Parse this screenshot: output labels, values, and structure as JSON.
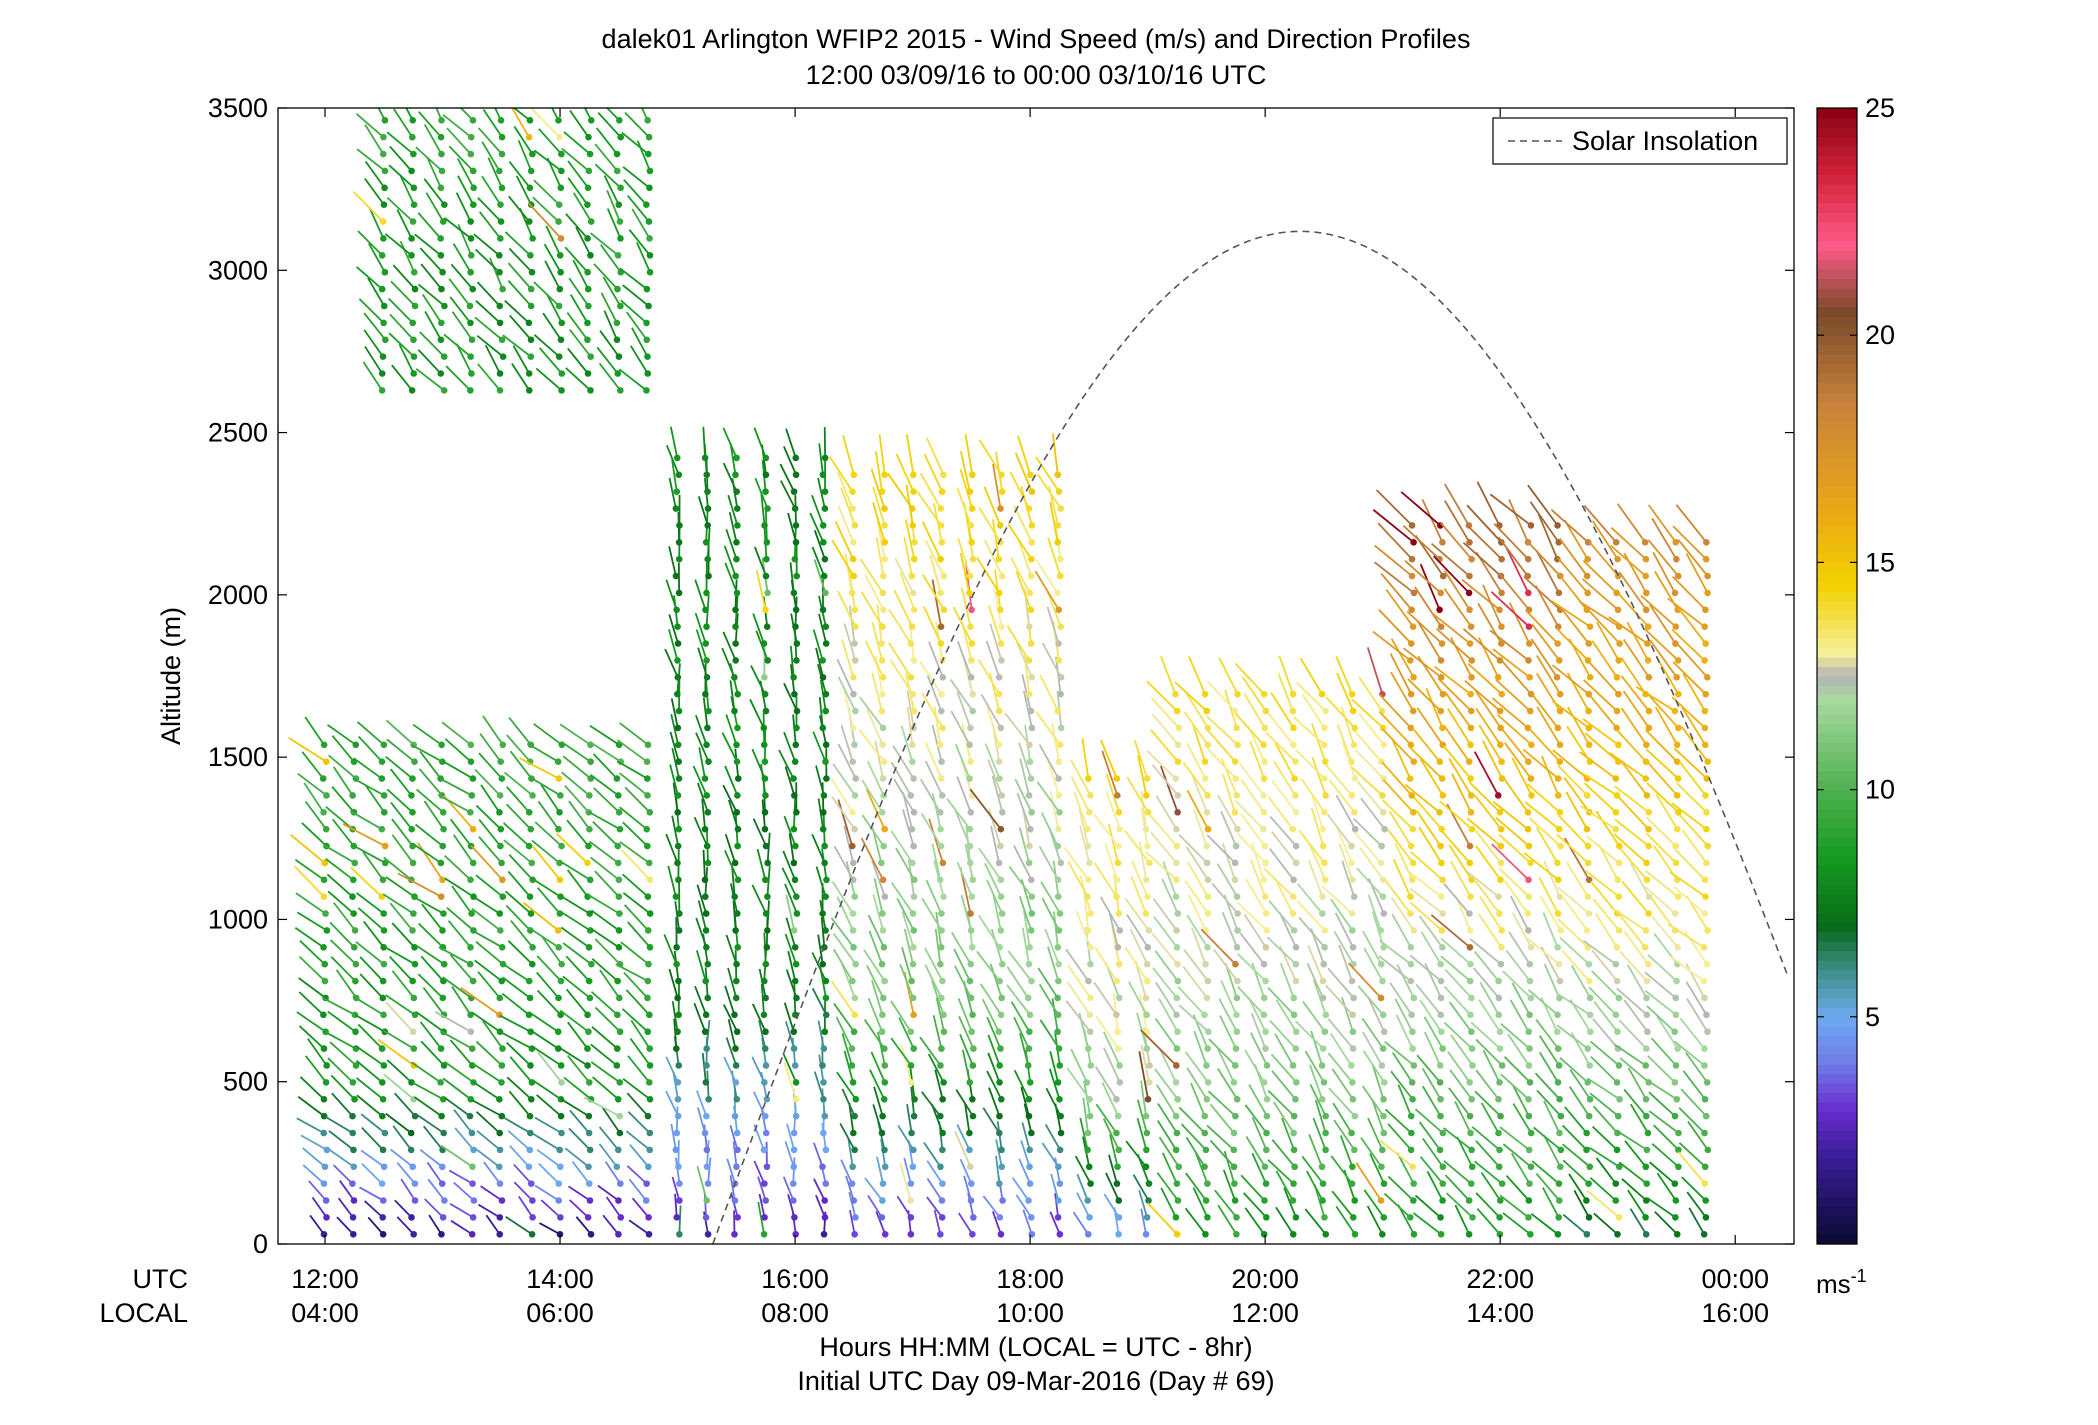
{
  "chart_data": {
    "type": "scatter",
    "title": "dalek01 Arlington WFIP2 2015 - Wind Speed (m/s) and Direction Profiles",
    "subtitle": "12:00 03/09/16 to 00:00 03/10/16  UTC",
    "xlabel": "Hours HH:MM  (LOCAL = UTC - 8hr)",
    "xlabel2": "Initial UTC Day 09-Mar-2016 (Day # 69)",
    "ylabel": "Altitude (m)",
    "xlim_hours": [
      11.6,
      24.5
    ],
    "ylim": [
      0,
      3500
    ],
    "yticks": [
      "0",
      "500",
      "1000",
      "1500",
      "2000",
      "2500",
      "3000",
      "3500"
    ],
    "xtick_hours": [
      12,
      14,
      16,
      18,
      20,
      22,
      24
    ],
    "xticks_utc": [
      "12:00",
      "14:00",
      "16:00",
      "18:00",
      "20:00",
      "22:00",
      "00:00"
    ],
    "xticks_local": [
      "04:00",
      "06:00",
      "08:00",
      "10:00",
      "12:00",
      "14:00",
      "16:00"
    ],
    "row_label_utc": "UTC",
    "row_label_local": "LOCAL",
    "legend": {
      "label": "Solar Insolation",
      "position": "top-right",
      "style": "dashed"
    },
    "solar_insolation": {
      "peak_hour": 20.3,
      "peak_altitude_m": 3120,
      "rise_hour": 15.3,
      "altitude_at_end_m": 985
    },
    "colorbar": {
      "range": [
        0,
        25
      ],
      "ticks": [
        "5",
        "10",
        "15",
        "20",
        "25"
      ],
      "tick_values": [
        5,
        10,
        15,
        20,
        25
      ],
      "units_base": "ms",
      "units_exp": "-1",
      "colors": [
        {
          "v": 0,
          "c": "#0a0a32"
        },
        {
          "v": 2,
          "c": "#3c1e9a"
        },
        {
          "v": 3,
          "c": "#6a2fd0"
        },
        {
          "v": 4,
          "c": "#6f7ee8"
        },
        {
          "v": 5,
          "c": "#6eaaf0"
        },
        {
          "v": 6,
          "c": "#3f8f8a"
        },
        {
          "v": 7,
          "c": "#0a6a1a"
        },
        {
          "v": 8.5,
          "c": "#159a20"
        },
        {
          "v": 10,
          "c": "#4fb050"
        },
        {
          "v": 12,
          "c": "#a8d9a0"
        },
        {
          "v": 12.5,
          "c": "#b4b4b4"
        },
        {
          "v": 13,
          "c": "#f5ef9a"
        },
        {
          "v": 14.5,
          "c": "#f2d200"
        },
        {
          "v": 16,
          "c": "#ebab14"
        },
        {
          "v": 18.5,
          "c": "#c8823c"
        },
        {
          "v": 20.5,
          "c": "#7a4a2a"
        },
        {
          "v": 22,
          "c": "#ff5a8a"
        },
        {
          "v": 23.5,
          "c": "#d2243c"
        },
        {
          "v": 25,
          "c": "#8a0012"
        }
      ]
    },
    "profiles": {
      "description_note_removed": "",
      "time_start_hour": 12.0,
      "time_end_hour": 24.0,
      "time_step_hours": 0.25,
      "altitude_step_m": 52,
      "regimes": [
        {
          "from": 12.0,
          "to": 14.9,
          "speed_low": 1.5,
          "speed_mid": 8.5,
          "speed_high": 9.5,
          "top": 1560,
          "dir_deg": 225
        },
        {
          "from": 12.4,
          "to": 14.8,
          "speed_low": 8.5,
          "speed_mid": 8.5,
          "speed_high": 9.0,
          "band": [
            2600,
            3470
          ],
          "dir_deg": 215
        },
        {
          "from": 15.0,
          "to": 16.5,
          "speed_low": 2.5,
          "speed_mid": 7.5,
          "speed_high": 8.0,
          "top": 2450,
          "dir_deg": 190
        },
        {
          "from": 16.5,
          "to": 18.3,
          "speed_low": 3.0,
          "speed_mid": 11.0,
          "speed_high": 14.5,
          "top": 2400,
          "dir_deg": 200
        },
        {
          "from": 18.3,
          "to": 19.2,
          "speed_low": 4.0,
          "speed_mid": 12.0,
          "speed_high": 14.0,
          "top": 1450,
          "dir_deg": 200
        },
        {
          "from": 19.2,
          "to": 21.2,
          "speed_low": 8.5,
          "speed_mid": 11.5,
          "speed_high": 14.0,
          "top": 1700,
          "dir_deg": 210
        },
        {
          "from": 21.2,
          "to": 22.6,
          "speed_low": 8.5,
          "speed_mid": 11.5,
          "speed_high": 19.5,
          "top": 2250,
          "dir_deg": 215
        },
        {
          "from": 22.6,
          "to": 24.0,
          "speed_low": 7.0,
          "speed_mid": 12.0,
          "speed_high": 18.0,
          "top": 2200,
          "dir_deg": 220
        }
      ]
    }
  }
}
